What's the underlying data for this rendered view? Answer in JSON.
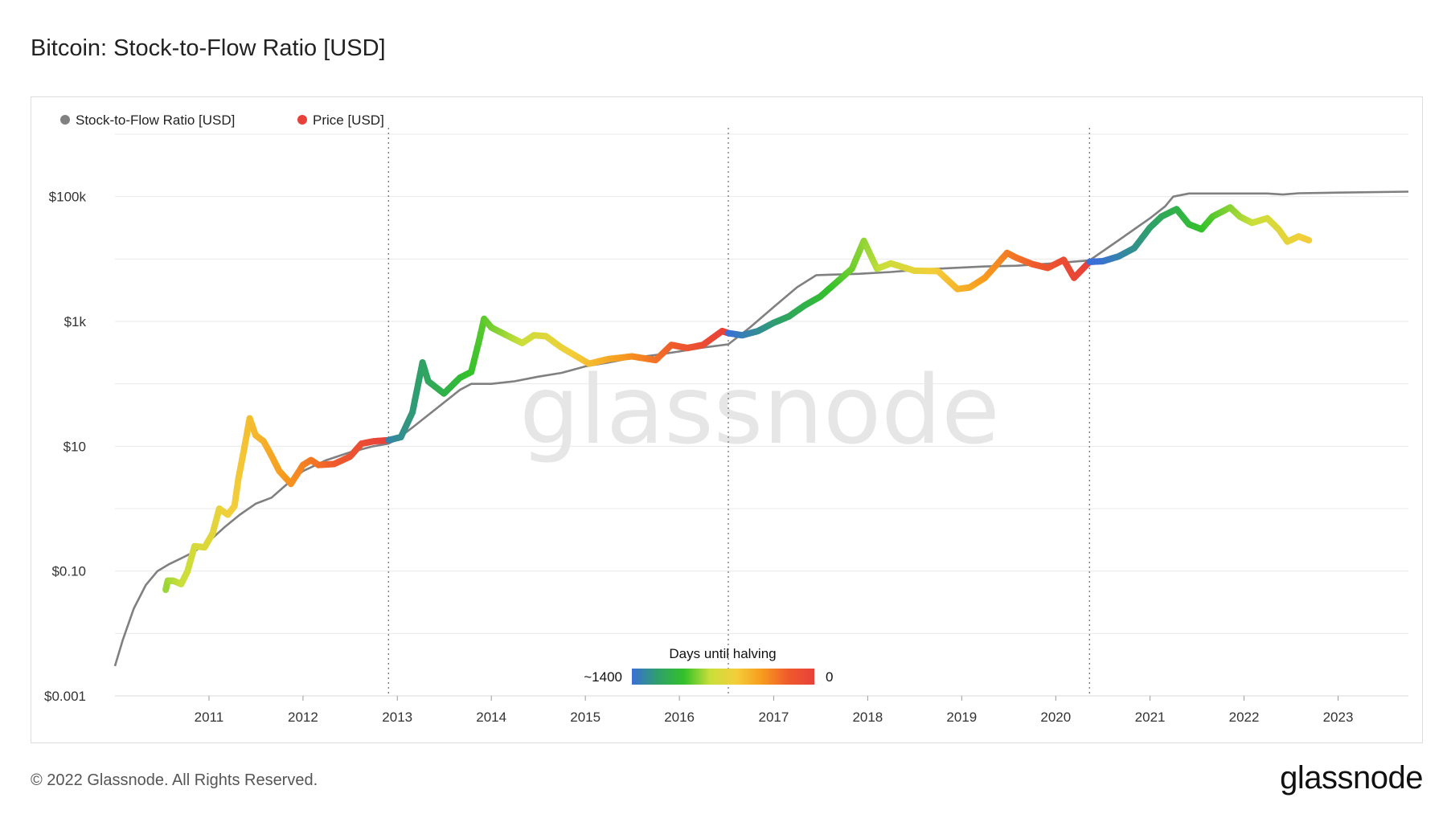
{
  "page": {
    "title": "Bitcoin: Stock-to-Flow Ratio [USD]",
    "copyright": "© 2022 Glassnode. All Rights Reserved.",
    "brand": "glassnode"
  },
  "chart_data": {
    "type": "line",
    "title": "Bitcoin: Stock-to-Flow Ratio [USD]",
    "watermark": "glassnode",
    "y_scale": "log",
    "ylim": [
      0.001,
      1000000
    ],
    "y_ticks": [
      {
        "value": 0.001,
        "label": "$0.001"
      },
      {
        "value": 0.1,
        "label": "$0.10"
      },
      {
        "value": 10,
        "label": "$10"
      },
      {
        "value": 1000,
        "label": "$1k"
      },
      {
        "value": 100000,
        "label": "$100k"
      }
    ],
    "y_gridlines": [
      0.001,
      0.01,
      0.1,
      1,
      10,
      100,
      1000,
      10000,
      100000,
      1000000
    ],
    "xlim": [
      "2010-01-01",
      "2023-10-01"
    ],
    "x_ticks": [
      "2011",
      "2012",
      "2013",
      "2014",
      "2015",
      "2016",
      "2017",
      "2018",
      "2019",
      "2020",
      "2021",
      "2022",
      "2023"
    ],
    "grid": true,
    "legend": {
      "placement": "top-left",
      "entries": [
        {
          "label": "Stock-to-Flow Ratio [USD]",
          "color": "#808080"
        },
        {
          "label": "Price [USD]",
          "color": "#e8413a"
        }
      ]
    },
    "halvings": [
      "2012-11-28",
      "2016-07-09",
      "2020-05-11"
    ],
    "colorbar": {
      "title": "Days until halving",
      "min_label": "~1400",
      "max_label": "0",
      "colors": [
        "#3a6fd8",
        "#2fa06a",
        "#33c12a",
        "#c9df3a",
        "#f3ce3a",
        "#f79a1e",
        "#ef5a2c",
        "#e8413a"
      ]
    },
    "series": [
      {
        "name": "Stock-to-Flow Ratio [USD]",
        "color": "#808080",
        "points": [
          [
            "2010-01-01",
            0.003
          ],
          [
            "2010-02-01",
            0.008
          ],
          [
            "2010-03-15",
            0.025
          ],
          [
            "2010-05-01",
            0.06
          ],
          [
            "2010-06-15",
            0.1
          ],
          [
            "2010-08-01",
            0.13
          ],
          [
            "2010-09-15",
            0.16
          ],
          [
            "2010-11-01",
            0.2
          ],
          [
            "2011-01-01",
            0.3
          ],
          [
            "2011-03-01",
            0.5
          ],
          [
            "2011-05-01",
            0.8
          ],
          [
            "2011-07-01",
            1.2
          ],
          [
            "2011-09-01",
            1.5
          ],
          [
            "2011-11-01",
            2.5
          ],
          [
            "2012-01-01",
            4
          ],
          [
            "2012-04-01",
            6
          ],
          [
            "2012-07-01",
            8
          ],
          [
            "2012-10-01",
            10
          ],
          [
            "2012-11-28",
            11
          ],
          [
            "2013-01-01",
            13
          ],
          [
            "2013-03-01",
            20
          ],
          [
            "2013-06-01",
            40
          ],
          [
            "2013-09-01",
            80
          ],
          [
            "2013-10-15",
            100
          ],
          [
            "2014-01-01",
            100
          ],
          [
            "2014-04-01",
            110
          ],
          [
            "2014-07-01",
            130
          ],
          [
            "2014-10-01",
            150
          ],
          [
            "2015-01-01",
            190
          ],
          [
            "2015-04-01",
            220
          ],
          [
            "2015-07-01",
            260
          ],
          [
            "2015-10-01",
            290
          ],
          [
            "2016-01-01",
            330
          ],
          [
            "2016-04-01",
            380
          ],
          [
            "2016-07-09",
            430
          ],
          [
            "2016-10-01",
            800
          ],
          [
            "2017-01-01",
            1700
          ],
          [
            "2017-04-01",
            3500
          ],
          [
            "2017-06-15",
            5500
          ],
          [
            "2017-08-01",
            5600
          ],
          [
            "2017-12-01",
            5800
          ],
          [
            "2018-04-01",
            6200
          ],
          [
            "2018-08-01",
            6800
          ],
          [
            "2018-12-01",
            7200
          ],
          [
            "2019-04-01",
            7600
          ],
          [
            "2019-08-01",
            7800
          ],
          [
            "2019-12-01",
            8400
          ],
          [
            "2020-05-11",
            9500
          ],
          [
            "2020-09-01",
            20000
          ],
          [
            "2021-01-01",
            45000
          ],
          [
            "2021-03-01",
            70000
          ],
          [
            "2021-04-01",
            100000
          ],
          [
            "2021-06-01",
            112000
          ],
          [
            "2021-12-01",
            112000
          ],
          [
            "2022-04-01",
            112000
          ],
          [
            "2022-06-01",
            108000
          ],
          [
            "2022-08-01",
            113000
          ],
          [
            "2023-01-01",
            116000
          ],
          [
            "2023-10-01",
            120000
          ]
        ]
      },
      {
        "name": "Price [USD]",
        "color_by": "days until halving",
        "points": [
          [
            "2010-07-17",
            0.05
          ],
          [
            "2010-07-25",
            0.07
          ],
          [
            "2010-08-15",
            0.07
          ],
          [
            "2010-09-15",
            0.062
          ],
          [
            "2010-10-10",
            0.1
          ],
          [
            "2010-11-06",
            0.25
          ],
          [
            "2010-12-15",
            0.24
          ],
          [
            "2011-01-15",
            0.4
          ],
          [
            "2011-02-10",
            1.0
          ],
          [
            "2011-03-15",
            0.8
          ],
          [
            "2011-04-10",
            1.1
          ],
          [
            "2011-04-25",
            3
          ],
          [
            "2011-05-15",
            8
          ],
          [
            "2011-06-08",
            28
          ],
          [
            "2011-07-01",
            15
          ],
          [
            "2011-08-01",
            12
          ],
          [
            "2011-09-01",
            7
          ],
          [
            "2011-10-01",
            4
          ],
          [
            "2011-11-15",
            2.5
          ],
          [
            "2012-01-01",
            5
          ],
          [
            "2012-02-01",
            6
          ],
          [
            "2012-03-01",
            5
          ],
          [
            "2012-05-01",
            5.2
          ],
          [
            "2012-07-01",
            6.8
          ],
          [
            "2012-08-15",
            11
          ],
          [
            "2012-10-01",
            12
          ],
          [
            "2012-11-28",
            12.5
          ],
          [
            "2013-01-15",
            14
          ],
          [
            "2013-03-01",
            35
          ],
          [
            "2013-04-09",
            220
          ],
          [
            "2013-05-01",
            110
          ],
          [
            "2013-07-01",
            70
          ],
          [
            "2013-09-01",
            125
          ],
          [
            "2013-10-15",
            155
          ],
          [
            "2013-11-15",
            500
          ],
          [
            "2013-12-04",
            1100
          ],
          [
            "2014-01-01",
            800
          ],
          [
            "2014-03-01",
            600
          ],
          [
            "2014-05-01",
            450
          ],
          [
            "2014-06-15",
            600
          ],
          [
            "2014-08-01",
            580
          ],
          [
            "2014-10-01",
            380
          ],
          [
            "2015-01-15",
            210
          ],
          [
            "2015-04-01",
            250
          ],
          [
            "2015-07-01",
            275
          ],
          [
            "2015-10-01",
            240
          ],
          [
            "2015-12-01",
            420
          ],
          [
            "2016-02-01",
            375
          ],
          [
            "2016-04-01",
            420
          ],
          [
            "2016-06-15",
            700
          ],
          [
            "2016-07-09",
            650
          ],
          [
            "2016-09-01",
            600
          ],
          [
            "2016-11-01",
            700
          ],
          [
            "2017-01-01",
            950
          ],
          [
            "2017-03-01",
            1200
          ],
          [
            "2017-05-01",
            1800
          ],
          [
            "2017-07-01",
            2500
          ],
          [
            "2017-09-01",
            4200
          ],
          [
            "2017-11-01",
            7000
          ],
          [
            "2017-12-17",
            19500
          ],
          [
            "2018-02-06",
            7000
          ],
          [
            "2018-04-01",
            8500
          ],
          [
            "2018-07-01",
            6500
          ],
          [
            "2018-10-01",
            6400
          ],
          [
            "2018-12-15",
            3300
          ],
          [
            "2019-02-01",
            3500
          ],
          [
            "2019-04-01",
            5000
          ],
          [
            "2019-06-26",
            12500
          ],
          [
            "2019-08-01",
            10500
          ],
          [
            "2019-10-01",
            8300
          ],
          [
            "2019-12-01",
            7200
          ],
          [
            "2020-02-01",
            9700
          ],
          [
            "2020-03-12",
            5000
          ],
          [
            "2020-05-11",
            9000
          ],
          [
            "2020-07-01",
            9200
          ],
          [
            "2020-09-01",
            11000
          ],
          [
            "2020-11-01",
            15000
          ],
          [
            "2021-01-01",
            32000
          ],
          [
            "2021-02-15",
            48000
          ],
          [
            "2021-04-14",
            63000
          ],
          [
            "2021-06-01",
            36000
          ],
          [
            "2021-07-20",
            30000
          ],
          [
            "2021-09-01",
            48000
          ],
          [
            "2021-11-08",
            67000
          ],
          [
            "2021-12-15",
            48000
          ],
          [
            "2022-02-01",
            38000
          ],
          [
            "2022-04-01",
            45000
          ],
          [
            "2022-05-15",
            30000
          ],
          [
            "2022-06-18",
            19000
          ],
          [
            "2022-08-01",
            23000
          ],
          [
            "2022-09-10",
            20000
          ]
        ]
      }
    ]
  }
}
